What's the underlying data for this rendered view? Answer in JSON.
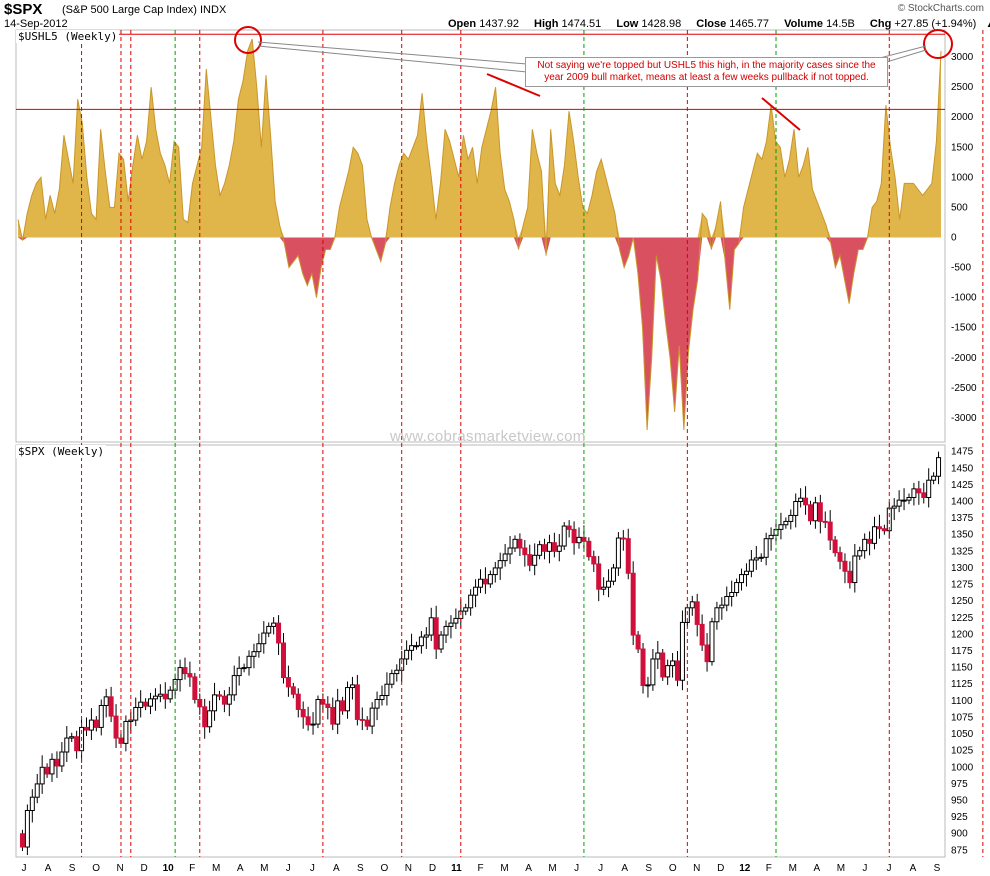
{
  "header": {
    "symbol": "$SPX",
    "name": "(S&P 500 Large Cap Index) INDX",
    "date": "14-Sep-2012",
    "brand": "© StockCharts.com",
    "quote": [
      {
        "label": "Open",
        "value": "1437.92"
      },
      {
        "label": "High",
        "value": "1474.51"
      },
      {
        "label": "Low",
        "value": "1428.98"
      },
      {
        "label": "Close",
        "value": "1465.77"
      },
      {
        "label": "Volume",
        "value": "14.5B"
      },
      {
        "label": "Chg",
        "value": "+27.85 (+1.94%)"
      }
    ]
  },
  "watermark": "www.cobrasmarketview.com",
  "annotation": "Not saying we're topped but USHL5 this high, in the majority cases since the year 2009 bull market, means at least a few weeks pullback if not topped.",
  "colors": {
    "positive_fill": "#e0b54a",
    "negative_fill": "#d95060",
    "up_candle": "#ffffff",
    "down_candle": "#d0103a",
    "red_vline": "#dd0000",
    "green_vline": "#00a000",
    "ref_line": "#dd0000"
  },
  "chart_data": [
    {
      "type": "area",
      "panel_label": "$USHL5 (Weekly)",
      "y_ticks": [
        3000,
        2500,
        2000,
        1500,
        1000,
        500,
        0,
        -500,
        -1000,
        -1500,
        -2000,
        -2500,
        -3000
      ],
      "ylim": [
        -3400,
        3450
      ],
      "ref_lines": [
        3380,
        2130
      ],
      "values": [
        300,
        -50,
        400,
        700,
        900,
        1000,
        300,
        700,
        400,
        800,
        1700,
        1300,
        900,
        2300,
        1900,
        1000,
        400,
        300,
        1800,
        1100,
        500,
        500,
        1400,
        1300,
        600,
        1200,
        1700,
        1300,
        1600,
        2500,
        1800,
        1400,
        1200,
        900,
        1600,
        1500,
        300,
        250,
        900,
        1200,
        1500,
        2800,
        2000,
        1200,
        700,
        900,
        1200,
        1600,
        2300,
        2600,
        3100,
        3300,
        2500,
        1500,
        2700,
        1700,
        600,
        200,
        -100,
        -500,
        -400,
        -300,
        -600,
        -800,
        -600,
        -1000,
        -500,
        -200,
        -200,
        0,
        500,
        800,
        1100,
        1500,
        1400,
        1200,
        300,
        0,
        -200,
        -400,
        -100,
        500,
        900,
        1200,
        1400,
        1300,
        1500,
        1700,
        2400,
        1600,
        1000,
        300,
        900,
        1800,
        1600,
        1300,
        1000,
        1700,
        1300,
        1500,
        900,
        1500,
        1800,
        2100,
        2500,
        1400,
        800,
        600,
        300,
        -200,
        200,
        500,
        1800,
        1400,
        1100,
        -300,
        1800,
        900,
        700,
        1200,
        2100,
        1600,
        1000,
        500,
        400,
        700,
        1100,
        1300,
        1000,
        700,
        400,
        -200,
        -500,
        -300,
        0,
        -600,
        -1500,
        -3200,
        -2000,
        -300,
        -700,
        -1400,
        -2000,
        -2900,
        -1800,
        -3200,
        -1900,
        -1200,
        -700,
        400,
        300,
        -200,
        200,
        600,
        -400,
        -1200,
        -200,
        -100,
        500,
        800,
        1100,
        1400,
        1300,
        1600,
        2200,
        1600,
        1500,
        1000,
        1300,
        1800,
        1000,
        1200,
        1500,
        800,
        600,
        400,
        200,
        -100,
        -500,
        -300,
        -700,
        -1100,
        -600,
        -200,
        -200,
        0,
        500,
        600,
        900,
        2200,
        1500,
        1000,
        300,
        900,
        900,
        900,
        800,
        700,
        800,
        900,
        1600,
        3100
      ],
      "x_month_labels": []
    },
    {
      "type": "candlestick",
      "panel_label": "$SPX (Weekly)",
      "y_ticks": [
        1475,
        1450,
        1425,
        1400,
        1375,
        1350,
        1325,
        1300,
        1275,
        1250,
        1225,
        1200,
        1175,
        1150,
        1125,
        1100,
        1075,
        1050,
        1025,
        1000,
        975,
        950,
        925,
        900,
        875
      ],
      "ylim": [
        865,
        1485
      ],
      "start_close": 900,
      "closes": [
        880,
        935,
        955,
        975,
        1000,
        990,
        1012,
        1002,
        1023,
        1044,
        1046,
        1025,
        1060,
        1056,
        1071,
        1060,
        1093,
        1106,
        1077,
        1044,
        1036,
        1069,
        1071,
        1090,
        1098,
        1092,
        1103,
        1107,
        1110,
        1103,
        1116,
        1132,
        1150,
        1141,
        1136,
        1102,
        1091,
        1061,
        1085,
        1109,
        1107,
        1095,
        1109,
        1138,
        1149,
        1150,
        1167,
        1174,
        1186,
        1202,
        1212,
        1217,
        1187,
        1135,
        1121,
        1110,
        1087,
        1076,
        1064,
        1065,
        1102,
        1095,
        1090,
        1065,
        1100,
        1085,
        1120,
        1124,
        1072,
        1071,
        1062,
        1089,
        1102,
        1108,
        1125,
        1141,
        1146,
        1163,
        1176,
        1183,
        1183,
        1196,
        1199,
        1225,
        1178,
        1199,
        1212,
        1217,
        1224,
        1235,
        1240,
        1259,
        1271,
        1283,
        1276,
        1290,
        1300,
        1311,
        1321,
        1330,
        1343,
        1330,
        1320,
        1304,
        1319,
        1335,
        1325,
        1338,
        1325,
        1333,
        1363,
        1358,
        1338,
        1346,
        1340,
        1317,
        1306,
        1268,
        1271,
        1280,
        1300,
        1345,
        1344,
        1292,
        1199,
        1178,
        1123,
        1124,
        1163,
        1172,
        1136,
        1153,
        1160,
        1131,
        1218,
        1240,
        1249,
        1215,
        1184,
        1159,
        1219,
        1240,
        1244,
        1257,
        1263,
        1278,
        1290,
        1295,
        1312,
        1315,
        1316,
        1344,
        1349,
        1358,
        1365,
        1370,
        1379,
        1400,
        1405,
        1395,
        1371,
        1398,
        1370,
        1369,
        1342,
        1323,
        1310,
        1295,
        1278,
        1318,
        1326,
        1343,
        1337,
        1362,
        1359,
        1356,
        1390,
        1393,
        1402,
        1402,
        1406,
        1419,
        1413,
        1406,
        1432,
        1438,
        1466
      ],
      "x_month_labels": [
        "J",
        "A",
        "S",
        "O",
        "N",
        "D",
        "10",
        "F",
        "M",
        "A",
        "M",
        "J",
        "J",
        "A",
        "S",
        "O",
        "N",
        "D",
        "11",
        "F",
        "M",
        "A",
        "M",
        "J",
        "J",
        "A",
        "S",
        "O",
        "N",
        "D",
        "12",
        "F",
        "M",
        "A",
        "M",
        "J",
        "J",
        "A",
        "S"
      ],
      "vlines": [
        {
          "week": 12,
          "color": "red"
        },
        {
          "week": 20,
          "color": "red"
        },
        {
          "week": 22,
          "color": "red"
        },
        {
          "week": 31,
          "color": "green"
        },
        {
          "week": 36,
          "color": "red"
        },
        {
          "week": 61,
          "color": "red"
        },
        {
          "week": 77,
          "color": "red"
        },
        {
          "week": 89,
          "color": "red"
        },
        {
          "week": 114,
          "color": "green"
        },
        {
          "week": 135,
          "color": "red"
        },
        {
          "week": 153,
          "color": "green"
        },
        {
          "week": 176,
          "color": "red"
        },
        {
          "week": 195,
          "color": "red"
        }
      ]
    }
  ]
}
